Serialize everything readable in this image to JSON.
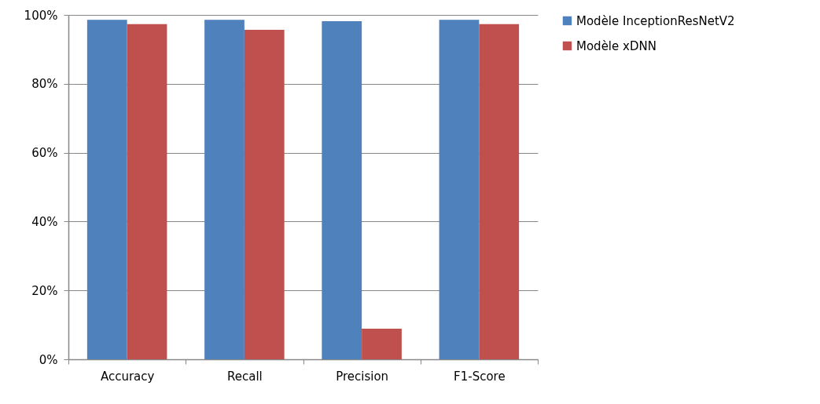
{
  "chart_data": {
    "type": "bar",
    "categories": [
      "Accuracy",
      "Recall",
      "Precision",
      "F1-Score"
    ],
    "series": [
      {
        "name": "Modèle InceptionResNetV2",
        "color": "#4f81bd",
        "values": [
          98.6,
          98.6,
          98.2,
          98.6
        ]
      },
      {
        "name": "Modèle xDNN",
        "color": "#c0504d",
        "values": [
          97.3,
          95.7,
          8.9,
          97.3
        ]
      }
    ],
    "ylim": [
      0,
      100
    ],
    "yticks": [
      {
        "value": 0,
        "label": "0%"
      },
      {
        "value": 20,
        "label": "20%"
      },
      {
        "value": 40,
        "label": "40%"
      },
      {
        "value": 60,
        "label": "60%"
      },
      {
        "value": 80,
        "label": "80%"
      },
      {
        "value": 100,
        "label": "100%"
      }
    ],
    "grid": "y",
    "legend": "right"
  }
}
